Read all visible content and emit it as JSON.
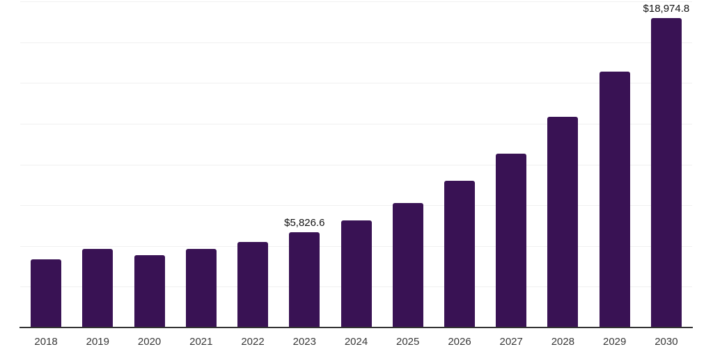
{
  "chart_data": {
    "type": "bar",
    "title": "",
    "xlabel": "",
    "ylabel": "",
    "categories": [
      "2018",
      "2019",
      "2020",
      "2021",
      "2022",
      "2023",
      "2024",
      "2025",
      "2026",
      "2027",
      "2028",
      "2029",
      "2030"
    ],
    "values": [
      4180,
      4820,
      4435,
      4820,
      5245,
      5826.6,
      6565,
      7630,
      9000,
      10660,
      12920,
      15680,
      18974.8
    ],
    "data_labels": [
      "",
      "",
      "",
      "",
      "",
      "$5,826.6",
      "",
      "",
      "",
      "",
      "",
      "",
      "$18,974.8"
    ],
    "ylim": [
      0,
      20000
    ],
    "gridline_step": 2500,
    "grid": true,
    "legend": false,
    "colors": {
      "bar": "#391254",
      "axis_line": "#333333",
      "gridline": "#f0f0f0",
      "tick_label": "#383838",
      "value_label": "#111111",
      "background": "#ffffff"
    }
  }
}
